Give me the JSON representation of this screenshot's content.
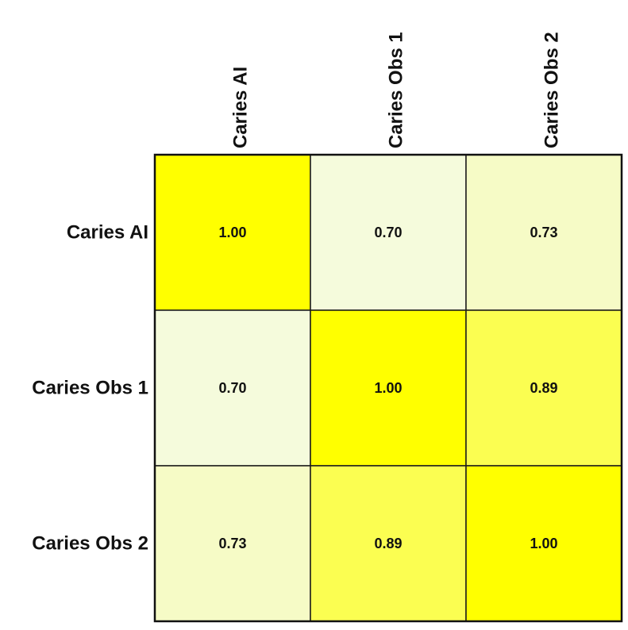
{
  "chart_data": {
    "type": "heatmap",
    "x_categories": [
      "Caries AI",
      "Caries Obs 1",
      "Caries Obs 2"
    ],
    "y_categories": [
      "Caries AI",
      "Caries Obs 1",
      "Caries Obs 2"
    ],
    "values": [
      [
        1.0,
        0.7,
        0.73
      ],
      [
        0.7,
        1.0,
        0.89
      ],
      [
        0.73,
        0.89,
        1.0
      ]
    ],
    "value_labels": [
      [
        "1.00",
        "0.70",
        "0.73"
      ],
      [
        "0.70",
        "1.00",
        "0.89"
      ],
      [
        "0.73",
        "0.89",
        "1.00"
      ]
    ],
    "x_label_orientation": "vertical",
    "color_scale": {
      "low_value": 0.7,
      "low_color": "#f5fbdc",
      "high_value": 1.0,
      "high_color": "#ffff00"
    },
    "grid": true,
    "legend": "none"
  }
}
